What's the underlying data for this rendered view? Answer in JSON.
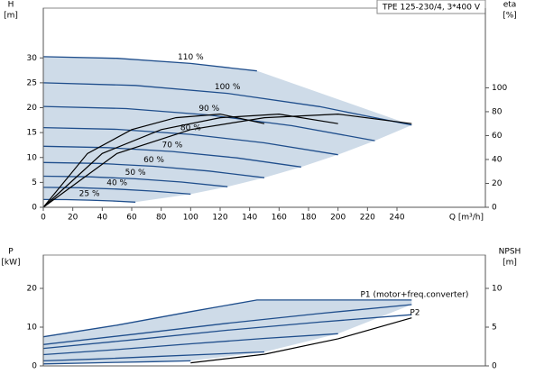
{
  "chart_data": [
    {
      "type": "line",
      "title": "TPE 125-230/4, 3*400 V",
      "ylabel": "H",
      "ylabel_unit": "[m]",
      "y2label": "eta",
      "y2label_unit": "[%]",
      "xlabel": "Q [m³/h]",
      "xlim": [
        0,
        300
      ],
      "xticks": [
        0,
        20,
        40,
        60,
        80,
        100,
        120,
        140,
        160,
        180,
        200,
        220,
        240
      ],
      "ylim": [
        0,
        40
      ],
      "yticks": [
        0,
        5,
        10,
        15,
        20,
        25,
        30
      ],
      "y2lim": [
        0,
        166.7
      ],
      "y2ticks": [
        0,
        20,
        40,
        60,
        80,
        100
      ],
      "shade": {
        "color": "#c9d7e6",
        "series": [
          0,
          1,
          2,
          3,
          4,
          5,
          6,
          7,
          8
        ]
      },
      "series": [
        {
          "name": "110 %",
          "color": "#1f4e8c",
          "x": [
            0,
            50,
            100,
            145
          ],
          "values": [
            30.25,
            29.91,
            28.89,
            27.39
          ]
        },
        {
          "name": "100 %",
          "color": "#1f4e8c",
          "x": [
            0,
            62.5,
            125,
            187.5,
            250
          ],
          "values": [
            25,
            24.47,
            22.88,
            20.22,
            16.5
          ]
        },
        {
          "name": "90 %",
          "color": "#1f4e8c",
          "x": [
            0,
            56.3,
            112.5,
            168.8,
            225
          ],
          "values": [
            20.25,
            19.82,
            18.53,
            16.38,
            13.37
          ]
        },
        {
          "name": "80 %",
          "color": "#1f4e8c",
          "x": [
            0,
            50,
            100,
            150,
            200
          ],
          "values": [
            16,
            15.66,
            14.64,
            12.94,
            10.56
          ]
        },
        {
          "name": "70 %",
          "color": "#1f4e8c",
          "x": [
            0,
            43.8,
            87.5,
            131.3,
            175
          ],
          "values": [
            12.25,
            11.99,
            11.21,
            9.91,
            8.09
          ]
        },
        {
          "name": "60 %",
          "color": "#1f4e8c",
          "x": [
            0,
            37.5,
            75,
            112.5,
            150
          ],
          "values": [
            9,
            8.81,
            8.24,
            7.28,
            5.94
          ]
        },
        {
          "name": "50 %",
          "color": "#1f4e8c",
          "x": [
            0,
            31.3,
            62.5,
            93.8,
            125
          ],
          "values": [
            6.25,
            6.12,
            5.72,
            5.06,
            4.13
          ]
        },
        {
          "name": "40 %",
          "color": "#1f4e8c",
          "x": [
            0,
            25,
            50,
            75,
            100
          ],
          "values": [
            4,
            3.92,
            3.66,
            3.24,
            2.64
          ]
        },
        {
          "name": "25 %",
          "color": "#1f4e8c",
          "x": [
            0,
            15.6,
            31.3,
            46.9,
            62.5
          ],
          "values": [
            1.56,
            1.53,
            1.43,
            1.26,
            1.03
          ]
        },
        {
          "color": "#000000",
          "axis": "y2",
          "x": [
            0,
            50,
            100,
            150,
            200,
            250
          ],
          "values": [
            0,
            45,
            65,
            75,
            78,
            70
          ]
        },
        {
          "color": "#000000",
          "axis": "y2",
          "x": [
            0,
            40,
            80,
            120,
            160,
            200
          ],
          "values": [
            0,
            45,
            65,
            75,
            78,
            70
          ]
        },
        {
          "color": "#000000",
          "axis": "y2",
          "x": [
            0,
            30,
            60,
            90,
            120,
            150
          ],
          "values": [
            0,
            45,
            65,
            75,
            78,
            70
          ]
        }
      ]
    },
    {
      "type": "line",
      "ylabel": "P",
      "ylabel_unit": "[kW]",
      "y2label": "NPSH",
      "y2label_unit": "[m]",
      "xlim": [
        0,
        300
      ],
      "ylim": [
        0,
        28.6
      ],
      "yticks": [
        0,
        10,
        20
      ],
      "y2lim": [
        0,
        14.3
      ],
      "y2ticks": [
        0,
        5,
        10
      ],
      "shade": {
        "color": "#c9d7e6",
        "series": [
          0,
          1,
          2,
          3,
          4
        ]
      },
      "series": [
        {
          "name": "P1 (motor+freq.converter)",
          "color": "#1f4e8c",
          "x": [
            0,
            50,
            100,
            145,
            250
          ],
          "values": [
            7.5,
            10.5,
            14,
            17,
            17
          ]
        },
        {
          "color": "#1f4e8c",
          "x": [
            0,
            62.5,
            125,
            187.5,
            250
          ],
          "values": [
            5.5,
            8.2,
            11,
            13.5,
            15.8
          ]
        },
        {
          "color": "#1f4e8c",
          "x": [
            0,
            50,
            100,
            150,
            200
          ],
          "values": [
            2.9,
            4.2,
            5.7,
            7.1,
            8.3
          ]
        },
        {
          "color": "#1f4e8c",
          "x": [
            0,
            37.5,
            75,
            112.5,
            150
          ],
          "values": [
            1.3,
            1.8,
            2.4,
            3,
            3.6
          ]
        },
        {
          "color": "#1f4e8c",
          "x": [
            0,
            25,
            50,
            75,
            100
          ],
          "values": [
            0.5,
            0.7,
            0.9,
            1.1,
            1.3
          ]
        },
        {
          "name": "P2",
          "color": "#1f4e8c",
          "x": [
            0,
            62.5,
            125,
            187.5,
            250
          ],
          "values": [
            4.5,
            6.8,
            9.2,
            11.3,
            13.2
          ]
        },
        {
          "color": "#000000",
          "axis": "y2",
          "x": [
            100,
            150,
            200,
            250
          ],
          "values": [
            0.4,
            1.5,
            3.5,
            6.2
          ]
        }
      ]
    }
  ]
}
